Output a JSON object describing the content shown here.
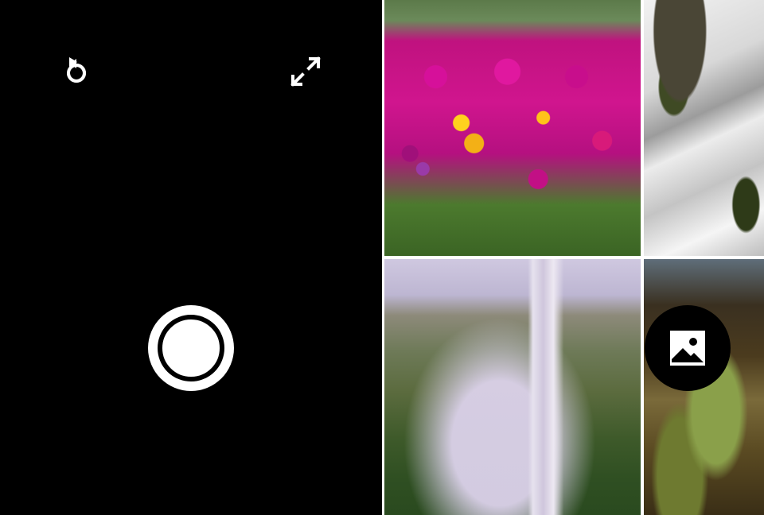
{
  "camera": {
    "controls": {
      "switch_camera": {
        "icon": "switch-camera-icon"
      },
      "fullscreen": {
        "icon": "fullscreen-icon"
      },
      "shutter": {
        "icon": "shutter-icon"
      }
    }
  },
  "gallery": {
    "open_gallery_button": {
      "icon": "gallery-image-icon"
    },
    "thumbnails": [
      {
        "subject": "flowers"
      },
      {
        "subject": "stream"
      },
      {
        "subject": "waterfall"
      },
      {
        "subject": "cliff"
      }
    ]
  },
  "colors": {
    "viewfinder_bg": "#000000",
    "icon_fg": "#ffffff",
    "gallery_divider": "#ffffff"
  }
}
